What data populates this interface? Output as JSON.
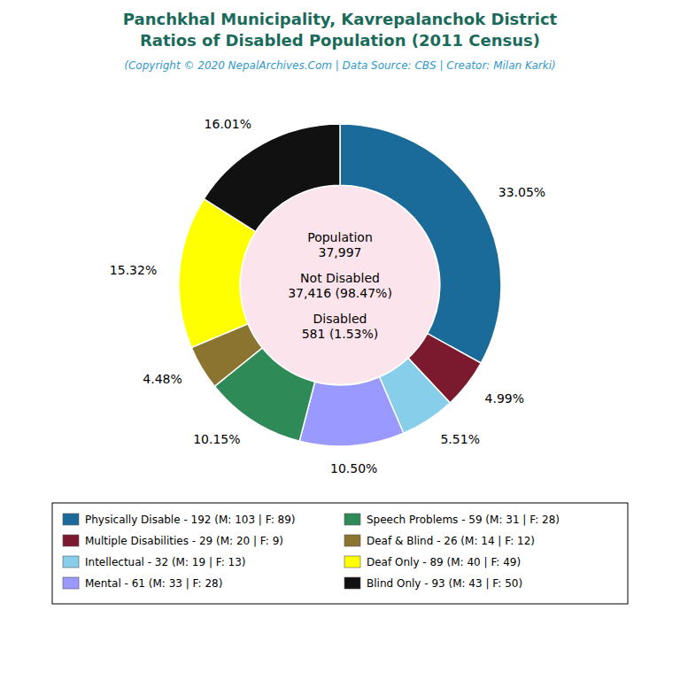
{
  "chart_data": {
    "type": "donut",
    "title": "Panchkhal Municipality, Kavrepalanchok District\nRatios of Disabled Population (2011 Census)",
    "subtitle": "(Copyright © 2020 NepalArchives.Com | Data Source: CBS | Creator: Milan Karki)",
    "categories": [
      "Physically Disable - 192 (M: 103 | F: 89)",
      "Multiple Disabilities - 29 (M: 20 | F: 9)",
      "Intellectual - 32 (M: 19 | F: 13)",
      "Mental - 61 (M: 33 | F: 28)",
      "Speech Problems - 59 (M: 31 | F: 28)",
      "Deaf & Blind - 26 (M: 14 | F: 12)",
      "Deaf Only - 89 (M: 40 | F: 49)",
      "Blind Only - 93 (M: 43 | F: 50)"
    ],
    "values": [
      33.05,
      4.99,
      5.51,
      10.5,
      10.15,
      4.48,
      15.32,
      16.01
    ],
    "value_labels": [
      "33.05%",
      "4.99%",
      "5.51%",
      "10.50%",
      "10.15%",
      "4.48%",
      "15.32%",
      "16.01%"
    ],
    "colors": [
      "#1a6b9a",
      "#7b1a2e",
      "#87ceeb",
      "#9999ff",
      "#2e8b57",
      "#8b7330",
      "#ffff00",
      "#111111"
    ],
    "data_labels": true,
    "annotations": [
      "Population",
      "37,997",
      "Not Disabled",
      "37,416 (98.47%)",
      "Disabled",
      "581 (1.53%)"
    ],
    "legend": "bottom"
  }
}
